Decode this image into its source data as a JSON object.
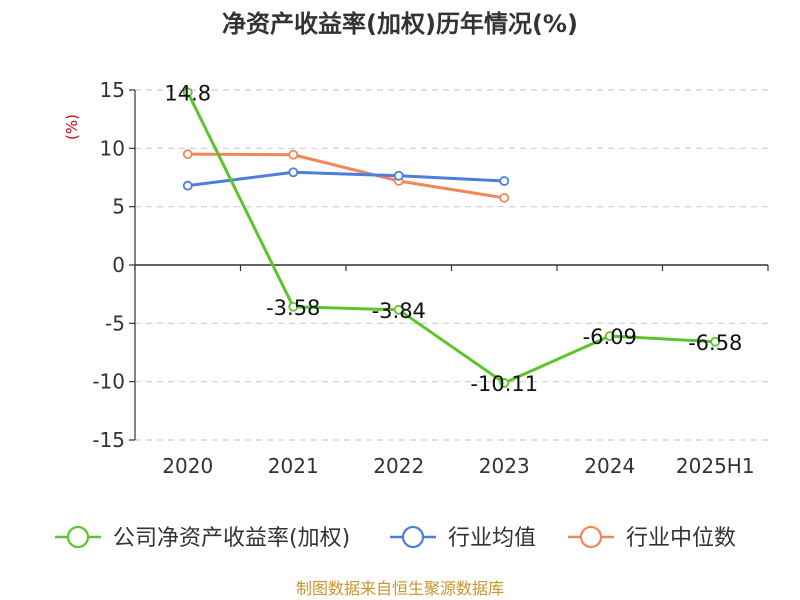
{
  "chart_data": {
    "type": "line",
    "title": "净资产收益率(加权)历年情况(%)",
    "ylabel": "(%)",
    "categories": [
      "2020",
      "2021",
      "2022",
      "2023",
      "2024",
      "2025H1"
    ],
    "ylim": [
      -15,
      15
    ],
    "yticks": [
      "15",
      "10",
      "5",
      "0",
      "-5",
      "-10",
      "-15"
    ],
    "ytick_values": [
      15,
      10,
      5,
      0,
      -5,
      -10,
      -15
    ],
    "grid": true,
    "legend_position": "bottom",
    "series": [
      {
        "name": "公司净资产收益率(加权)",
        "color": "#5cc42c",
        "values": [
          14.8,
          -3.58,
          -3.84,
          -10.11,
          -6.09,
          -6.58
        ],
        "labels": [
          "14.8",
          "-3.58",
          "-3.84",
          "-10.11",
          "-6.09",
          "-6.58"
        ]
      },
      {
        "name": "行业均值",
        "color": "#4a7fdc",
        "values": [
          6.8,
          7.95,
          7.65,
          7.2,
          null,
          null
        ]
      },
      {
        "name": "行业中位数",
        "color": "#f4875a",
        "values": [
          9.5,
          9.45,
          7.2,
          5.75,
          null,
          null
        ]
      }
    ]
  },
  "source": "制图数据来自恒生聚源数据库"
}
